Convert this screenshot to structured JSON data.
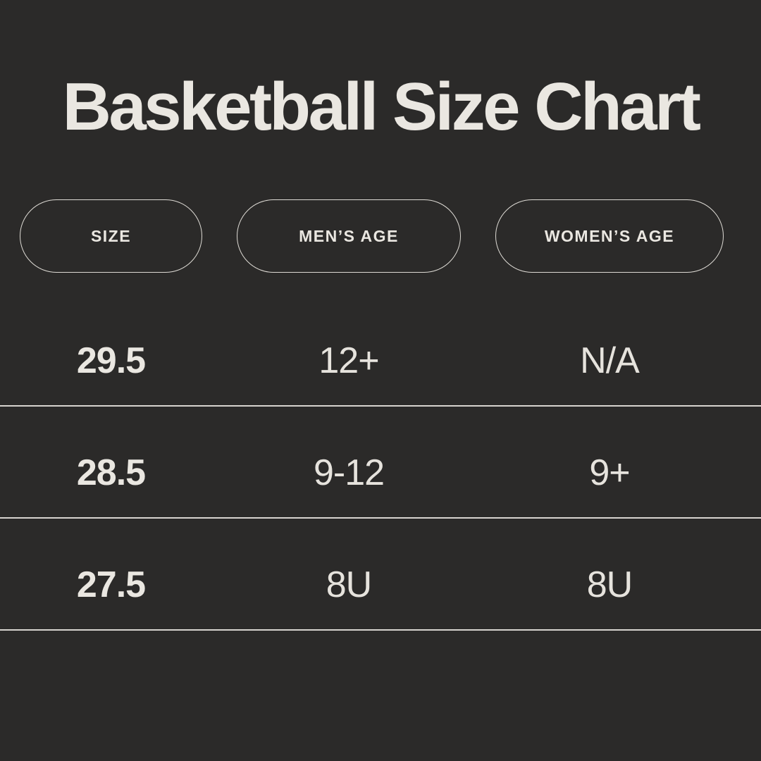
{
  "colors": {
    "background": "#2b2a29",
    "text": "#eae7e1",
    "muted_text": "#e6e3dd",
    "divider": "#d7d4cf",
    "pill_border": "#dedbd5"
  },
  "chart_data": {
    "type": "table",
    "title": "Basketball Size Chart",
    "columns": [
      "SIZE",
      "MEN’S AGE",
      "WOMEN’S AGE"
    ],
    "rows": [
      [
        "29.5",
        "12+",
        "N/A"
      ],
      [
        "28.5",
        "9-12",
        "9+"
      ],
      [
        "27.5",
        "8U",
        "8U"
      ]
    ]
  }
}
